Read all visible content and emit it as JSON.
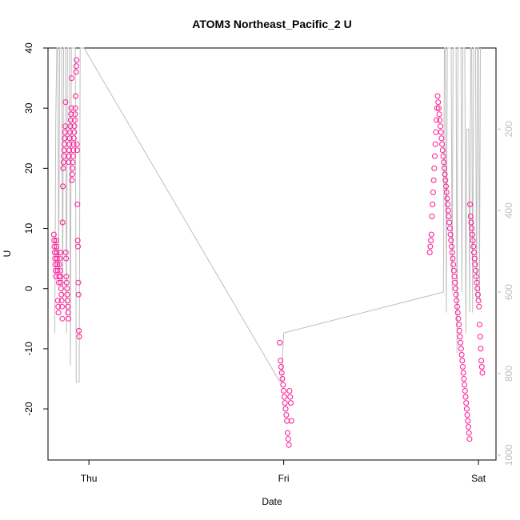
{
  "chart_data": {
    "type": "scatter",
    "title": "ATOM3 Northeast_Pacific_2 U",
    "xlabel": "Date",
    "ylabel": "U",
    "x_ticks": [
      {
        "label": "Thu",
        "day": 0
      },
      {
        "label": "Fri",
        "day": 1
      },
      {
        "label": "Sat",
        "day": 2
      }
    ],
    "x_range_days": [
      -0.21,
      2.09
    ],
    "ylim": [
      -28.5,
      40
    ],
    "y_ticks": [
      -20,
      -10,
      0,
      10,
      20,
      30,
      40
    ],
    "y2_ticks": [
      200,
      400,
      600,
      800,
      1000
    ],
    "y2lim": [
      1012,
      1
    ],
    "point_color": "#ff1493",
    "line_color": "#bebebe",
    "series": [
      {
        "day_range": [
          -0.18,
          -0.05
        ],
        "values": [
          9,
          8,
          7,
          6,
          5,
          4,
          3,
          2,
          8,
          7,
          6,
          5,
          4,
          3,
          -2,
          -3,
          -4,
          1,
          2,
          4,
          5,
          6,
          3,
          2,
          1,
          0,
          -1,
          -2,
          -3,
          -5,
          11,
          17,
          20,
          21,
          22,
          23,
          24,
          25,
          26,
          27,
          31,
          6,
          5,
          2,
          1,
          0,
          -1,
          -2,
          -3,
          -4,
          -5,
          21,
          22,
          23,
          24,
          25,
          26,
          27,
          28,
          29,
          30,
          35,
          18,
          19,
          20,
          21,
          22,
          23,
          24,
          25,
          26,
          27,
          28,
          29,
          30,
          32,
          36,
          37,
          38,
          24,
          23,
          14,
          8,
          7,
          1,
          -1,
          -7,
          -8
        ]
      },
      {
        "day_range": [
          0.98,
          1.04
        ],
        "values": [
          -9,
          -12,
          -13,
          -14,
          -15,
          -16,
          -17,
          -18,
          -19,
          -20,
          -21,
          -22,
          -24,
          -25,
          -26,
          -17,
          -18,
          -19,
          -22
        ]
      },
      {
        "day_range": [
          1.75,
          2.02
        ],
        "values": [
          6,
          7,
          8,
          9,
          12,
          14,
          16,
          18,
          20,
          22,
          24,
          26,
          28,
          30,
          32,
          31,
          30,
          29,
          28,
          27,
          26,
          25,
          24,
          23,
          22,
          21,
          20,
          19,
          18,
          17,
          16,
          15,
          14,
          13,
          12,
          11,
          10,
          9,
          8,
          7,
          6,
          5,
          4,
          3,
          2,
          1,
          0,
          -1,
          -2,
          -3,
          -4,
          -5,
          -6,
          -7,
          -8,
          -9,
          -10,
          -11,
          -12,
          -13,
          -14,
          -15,
          -16,
          -17,
          -18,
          -19,
          -20,
          -21,
          -22,
          -23,
          -24,
          -25,
          14,
          12,
          11,
          10,
          9,
          8,
          7,
          6,
          5,
          4,
          3,
          2,
          1,
          0,
          -1,
          -2,
          -3,
          -6,
          -8,
          -10,
          -12,
          -13,
          -14
        ]
      }
    ],
    "depth_trace": [
      [
        -0.175,
        700
      ],
      [
        -0.17,
        180
      ],
      [
        -0.165,
        1
      ],
      [
        -0.16,
        1
      ],
      [
        -0.155,
        550
      ],
      [
        -0.15,
        1
      ],
      [
        -0.14,
        1
      ],
      [
        -0.135,
        620
      ],
      [
        -0.13,
        1
      ],
      [
        -0.12,
        1
      ],
      [
        -0.115,
        700
      ],
      [
        -0.11,
        1
      ],
      [
        -0.1,
        1
      ],
      [
        -0.095,
        780
      ],
      [
        -0.09,
        1
      ],
      [
        -0.07,
        1
      ],
      [
        -0.065,
        820
      ],
      [
        -0.05,
        820
      ],
      [
        -0.045,
        1
      ],
      [
        -0.03,
        1
      ],
      [
        -0.025,
        1
      ],
      [
        0.98,
        820
      ],
      [
        0.99,
        820
      ],
      [
        0.995,
        750
      ],
      [
        1.0,
        700
      ],
      [
        1.82,
        600
      ],
      [
        1.825,
        1
      ],
      [
        1.83,
        1
      ],
      [
        1.835,
        650
      ],
      [
        1.84,
        1
      ],
      [
        1.86,
        1
      ],
      [
        1.865,
        600
      ],
      [
        1.87,
        1
      ],
      [
        1.885,
        1
      ],
      [
        1.89,
        750
      ],
      [
        1.895,
        1
      ],
      [
        1.91,
        1
      ],
      [
        1.915,
        600
      ],
      [
        1.92,
        1
      ],
      [
        1.93,
        1
      ],
      [
        1.935,
        700
      ],
      [
        1.94,
        200
      ],
      [
        1.95,
        200
      ],
      [
        1.955,
        650
      ],
      [
        1.96,
        1
      ],
      [
        1.965,
        1
      ],
      [
        1.97,
        650
      ],
      [
        1.975,
        1
      ],
      [
        1.985,
        1
      ],
      [
        1.99,
        620
      ],
      [
        1.995,
        1
      ],
      [
        2.0,
        1
      ],
      [
        2.005,
        620
      ],
      [
        2.01,
        1
      ]
    ]
  }
}
